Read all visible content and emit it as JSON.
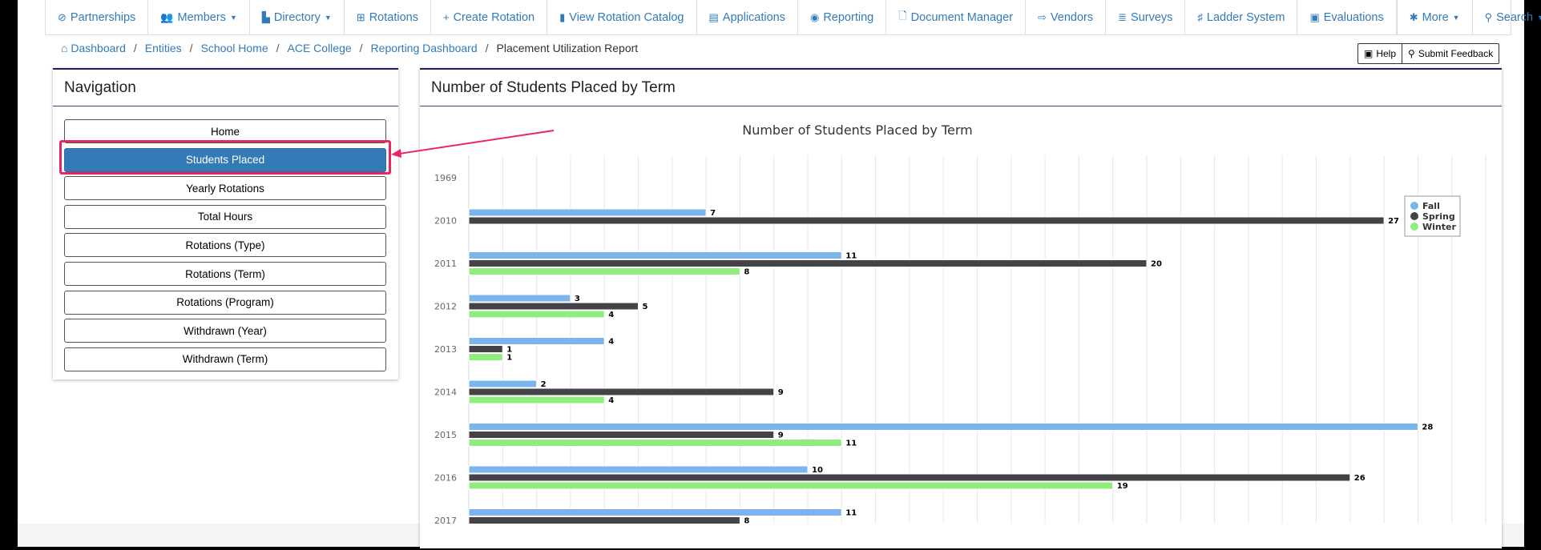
{
  "navbar": {
    "items": [
      {
        "label": "Partnerships",
        "icon": "link-icon",
        "glyph": "⊘",
        "caret": false
      },
      {
        "label": "Members",
        "icon": "users-icon",
        "glyph": "👥",
        "caret": true
      },
      {
        "label": "Directory",
        "icon": "directory-icon",
        "glyph": "▙",
        "caret": true
      },
      {
        "label": "Rotations",
        "icon": "grid-icon",
        "glyph": "⊞",
        "caret": false
      },
      {
        "label": "Create Rotation",
        "icon": "plus-icon",
        "glyph": "+",
        "caret": false
      },
      {
        "label": "View Rotation Catalog",
        "icon": "book-icon",
        "glyph": "▮",
        "caret": false
      },
      {
        "label": "Applications",
        "icon": "id-card-icon",
        "glyph": "▤",
        "caret": false
      },
      {
        "label": "Reporting",
        "icon": "dashboard-icon",
        "glyph": "◉",
        "caret": false
      },
      {
        "label": "Document Manager",
        "icon": "file-icon",
        "glyph": "🗋",
        "caret": false
      },
      {
        "label": "Vendors",
        "icon": "sign-in-icon",
        "glyph": "⇨",
        "caret": false
      },
      {
        "label": "Surveys",
        "icon": "list-icon",
        "glyph": "≣",
        "caret": false
      },
      {
        "label": "Ladder System",
        "icon": "ladder-icon",
        "glyph": "♯",
        "caret": false
      },
      {
        "label": "Evaluations",
        "icon": "clipboard-icon",
        "glyph": "▣",
        "caret": false
      }
    ],
    "right": [
      {
        "label": "More",
        "icon": "gear-icon",
        "glyph": "✱",
        "caret": true
      },
      {
        "label": "Search",
        "icon": "search-icon",
        "glyph": "⚲",
        "caret": true
      }
    ]
  },
  "breadcrumb": [
    "Dashboard",
    "Entities",
    "School Home",
    "ACE College",
    "Reporting Dashboard"
  ],
  "breadcrumb_current": "Placement Utilization Report",
  "help_label": "Help",
  "feedback_label": "Submit Feedback",
  "navigation": {
    "title": "Navigation",
    "items": [
      "Home",
      "Students Placed",
      "Yearly Rotations",
      "Total Hours",
      "Rotations (Type)",
      "Rotations (Term)",
      "Rotations (Program)",
      "Withdrawn (Year)",
      "Withdrawn (Term)"
    ],
    "active": 1
  },
  "chart_panel_title": "Number of Students Placed by Term",
  "colors": {
    "accent": "#337ab7",
    "highlight": "#e8275f"
  },
  "chart_data": {
    "type": "bar",
    "orientation": "horizontal",
    "title": "Number of Students Placed by Term",
    "categories": [
      "1969",
      "2010",
      "2011",
      "2012",
      "2013",
      "2014",
      "2015",
      "2016",
      "2017"
    ],
    "xlim": [
      0,
      30
    ],
    "grid": true,
    "legend": "top-right",
    "series": [
      {
        "name": "Fall",
        "color": "#7cb5ec",
        "values": [
          null,
          7,
          11,
          3,
          4,
          2,
          28,
          10,
          11
        ]
      },
      {
        "name": "Spring",
        "color": "#434348",
        "values": [
          null,
          27,
          20,
          5,
          1,
          9,
          9,
          26,
          8
        ]
      },
      {
        "name": "Winter",
        "color": "#90ed7d",
        "values": [
          null,
          null,
          8,
          4,
          1,
          4,
          11,
          19,
          null
        ]
      }
    ]
  }
}
